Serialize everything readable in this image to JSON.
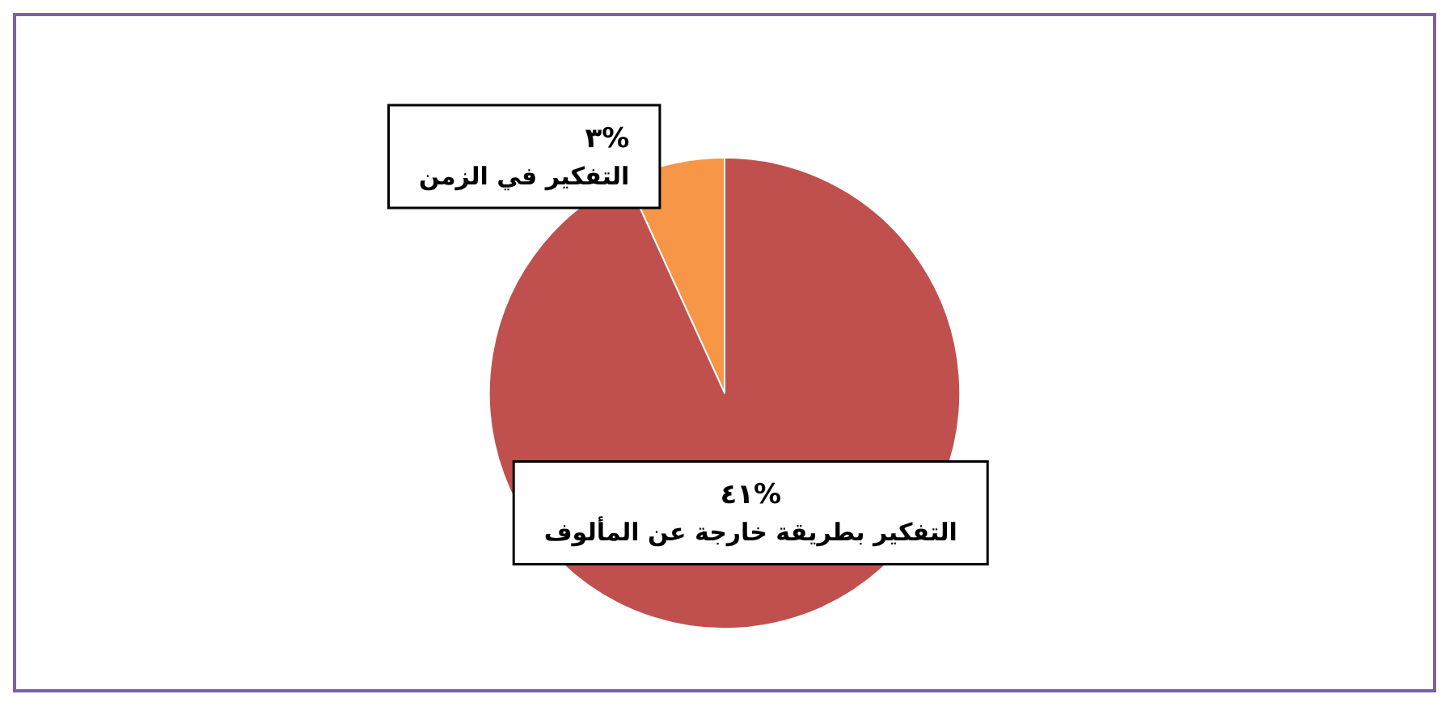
{
  "chart_data": {
    "type": "pie",
    "categories": [
      "التفكير في الزمن",
      "التفكير بطريقة خارجة عن المألوف"
    ],
    "values": [
      3,
      41
    ],
    "value_labels": [
      "٣%",
      "٤١%"
    ],
    "colors": [
      "#f79646",
      "#c0504d"
    ]
  }
}
